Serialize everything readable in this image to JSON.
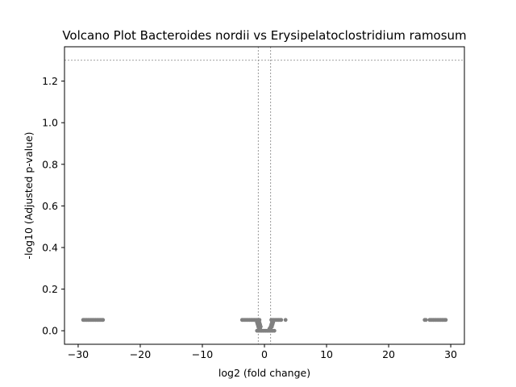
{
  "chart_data": {
    "type": "scatter",
    "title": "Volcano Plot Bacteroides nordii vs Erysipelatoclostridium ramosum",
    "xlabel": "log2 (fold change)",
    "ylabel": "-log10 (Adjusted p-value)",
    "xlim": [
      -32.2,
      32.2
    ],
    "ylim": [
      -0.065,
      1.365
    ],
    "xticks": [
      -30,
      -20,
      -10,
      0,
      10,
      20,
      30
    ],
    "xtick_labels": [
      "−30",
      "−20",
      "−10",
      "0",
      "10",
      "20",
      "30"
    ],
    "yticks": [
      0.0,
      0.2,
      0.4,
      0.6,
      0.8,
      1.0,
      1.2
    ],
    "ytick_labels": [
      "0.0",
      "0.2",
      "0.4",
      "0.6",
      "0.8",
      "1.0",
      "1.2"
    ],
    "threshold_lines": {
      "vertical_x": [
        -1,
        1
      ],
      "horizontal_y": 1.3,
      "color": "#808080",
      "style": "dashed"
    },
    "grid": false,
    "legend": "none",
    "point_color": "#808080",
    "points": [
      [
        -29.2,
        0.052
      ],
      [
        -29.0,
        0.052
      ],
      [
        -28.8,
        0.052
      ],
      [
        -28.6,
        0.052
      ],
      [
        -28.4,
        0.052
      ],
      [
        -28.2,
        0.052
      ],
      [
        -28.0,
        0.052
      ],
      [
        -27.8,
        0.052
      ],
      [
        -27.6,
        0.052
      ],
      [
        -27.4,
        0.052
      ],
      [
        -27.2,
        0.052
      ],
      [
        -27.0,
        0.052
      ],
      [
        -26.8,
        0.052
      ],
      [
        -26.6,
        0.052
      ],
      [
        -26.4,
        0.052
      ],
      [
        -26.2,
        0.052
      ],
      [
        -26.0,
        0.052
      ],
      [
        25.8,
        0.052
      ],
      [
        26.0,
        0.052
      ],
      [
        26.6,
        0.052
      ],
      [
        26.8,
        0.052
      ],
      [
        27.0,
        0.052
      ],
      [
        27.2,
        0.052
      ],
      [
        27.4,
        0.052
      ],
      [
        27.6,
        0.052
      ],
      [
        27.8,
        0.052
      ],
      [
        28.0,
        0.052
      ],
      [
        28.2,
        0.052
      ],
      [
        28.4,
        0.052
      ],
      [
        28.6,
        0.052
      ],
      [
        28.8,
        0.052
      ],
      [
        29.0,
        0.052
      ],
      [
        29.2,
        0.052
      ],
      [
        -3.6,
        0.052
      ],
      [
        -3.4,
        0.052
      ],
      [
        -3.2,
        0.052
      ],
      [
        -3.0,
        0.052
      ],
      [
        -2.8,
        0.052
      ],
      [
        -2.6,
        0.052
      ],
      [
        -2.4,
        0.052
      ],
      [
        -2.2,
        0.052
      ],
      [
        -2.0,
        0.052
      ],
      [
        -1.8,
        0.052
      ],
      [
        -1.6,
        0.052
      ],
      [
        -1.4,
        0.052
      ],
      [
        -1.2,
        0.052
      ],
      [
        -1.0,
        0.052
      ],
      [
        -0.8,
        0.052
      ],
      [
        -1.2,
        0.04
      ],
      [
        -1.0,
        0.04
      ],
      [
        -0.8,
        0.04
      ],
      [
        -1.1,
        0.03
      ],
      [
        -0.9,
        0.03
      ],
      [
        -0.7,
        0.03
      ],
      [
        -1.0,
        0.02
      ],
      [
        -0.8,
        0.02
      ],
      [
        -0.6,
        0.02
      ],
      [
        -0.9,
        0.01
      ],
      [
        -0.7,
        0.01
      ],
      [
        -1.2,
        0.0
      ],
      [
        -1.0,
        0.0
      ],
      [
        -0.8,
        0.0
      ],
      [
        -0.6,
        0.0
      ],
      [
        -0.4,
        0.0
      ],
      [
        -0.2,
        0.0
      ],
      [
        0.0,
        0.0
      ],
      [
        0.2,
        0.0
      ],
      [
        0.4,
        0.0
      ],
      [
        0.6,
        0.0
      ],
      [
        0.8,
        0.0
      ],
      [
        1.0,
        0.0
      ],
      [
        1.2,
        0.0
      ],
      [
        1.4,
        0.0
      ],
      [
        1.6,
        0.0
      ],
      [
        0.8,
        0.01
      ],
      [
        1.0,
        0.01
      ],
      [
        1.2,
        0.02
      ],
      [
        1.0,
        0.02
      ],
      [
        1.1,
        0.03
      ],
      [
        1.3,
        0.03
      ],
      [
        1.2,
        0.04
      ],
      [
        1.4,
        0.04
      ],
      [
        1.1,
        0.052
      ],
      [
        1.3,
        0.052
      ],
      [
        1.5,
        0.052
      ],
      [
        1.7,
        0.052
      ],
      [
        1.9,
        0.052
      ],
      [
        2.1,
        0.052
      ],
      [
        2.3,
        0.052
      ],
      [
        2.5,
        0.052
      ],
      [
        2.7,
        0.052
      ],
      [
        3.4,
        0.052
      ]
    ]
  }
}
